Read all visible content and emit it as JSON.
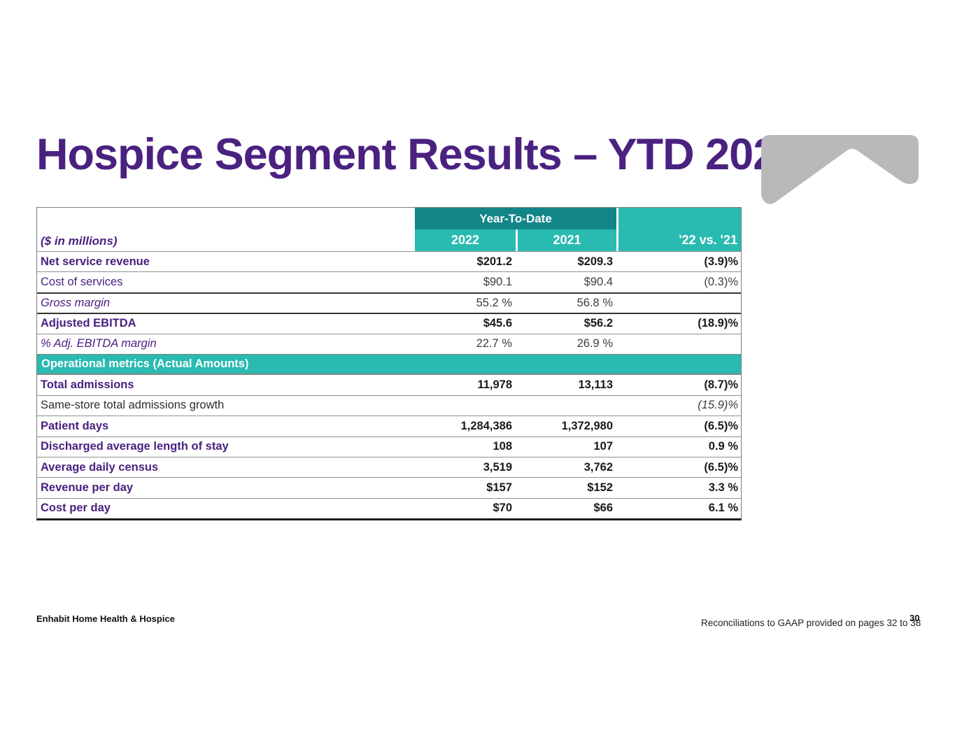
{
  "slide": {
    "title": "Hospice Segment Results – YTD 2022",
    "footer_left": "Enhabit Home Health & Hospice",
    "footer_note": "Reconciliations to GAAP provided on pages 32 to 38",
    "page_number": "30"
  },
  "colors": {
    "title_purple": "#4a2180",
    "header_dark_teal": "#138589",
    "header_light_teal": "#29bab1",
    "logo_gray": "#b9b9b9",
    "value_dark": "#1a1a1a"
  },
  "table": {
    "units_label": "($ in millions)",
    "group_header": "Year-To-Date",
    "columns": {
      "col_2022": "2022",
      "col_2021": "2021",
      "col_change": "'22 vs. '21"
    },
    "rows": [
      {
        "label": "Net service revenue",
        "v2022": "$201.2",
        "v2021": "$209.3",
        "change": "(3.9)%",
        "label_style": "bold",
        "value_style": "bold",
        "change_style": "bold"
      },
      {
        "label": "Cost of services",
        "v2022": "$90.1",
        "v2021": "$90.4",
        "change": "(0.3)%",
        "label_style": "regular",
        "value_style": "regular",
        "change_style": "regular"
      },
      {
        "label": "Gross margin",
        "v2022": "55.2 %",
        "v2021": "56.8 %",
        "change": "",
        "label_style": "italic",
        "value_style": "regular",
        "change_style": "regular"
      },
      {
        "label": "Adjusted EBITDA",
        "v2022": "$45.6",
        "v2021": "$56.2",
        "change": "(18.9)%",
        "label_style": "bold",
        "value_style": "bold",
        "change_style": "bold"
      },
      {
        "label": "%  Adj. EBITDA margin",
        "v2022": "22.7 %",
        "v2021": "26.9 %",
        "change": "",
        "label_style": "italic",
        "value_style": "regular",
        "change_style": "regular"
      },
      {
        "type": "section",
        "label": "Operational metrics (Actual Amounts)"
      },
      {
        "label": "Total admissions",
        "v2022": "11,978",
        "v2021": "13,113",
        "change": "(8.7)%",
        "label_style": "bold",
        "value_style": "bold",
        "change_style": "bold"
      },
      {
        "label": "Same-store total admissions growth",
        "v2022": "",
        "v2021": "",
        "change": "(15.9)%",
        "label_style": "plain",
        "value_style": "regular",
        "change_style": "italic"
      },
      {
        "label": "Patient days",
        "v2022": "1,284,386",
        "v2021": "1,372,980",
        "change": "(6.5)%",
        "label_style": "bold",
        "value_style": "bold",
        "change_style": "bold"
      },
      {
        "label": "Discharged average length of stay",
        "v2022": "108",
        "v2021": "107",
        "change": "0.9 %",
        "label_style": "bold",
        "value_style": "bold",
        "change_style": "bold"
      },
      {
        "label": "Average daily census",
        "v2022": "3,519",
        "v2021": "3,762",
        "change": "(6.5)%",
        "label_style": "bold",
        "value_style": "bold",
        "change_style": "bold"
      },
      {
        "label": "Revenue per day",
        "v2022": "$157",
        "v2021": "$152",
        "change": "3.3 %",
        "label_style": "bold",
        "value_style": "bold",
        "change_style": "bold"
      },
      {
        "label": "Cost per day",
        "v2022": "$70",
        "v2021": "$66",
        "change": "6.1 %",
        "label_style": "bold",
        "value_style": "bold",
        "change_style": "bold"
      }
    ]
  }
}
